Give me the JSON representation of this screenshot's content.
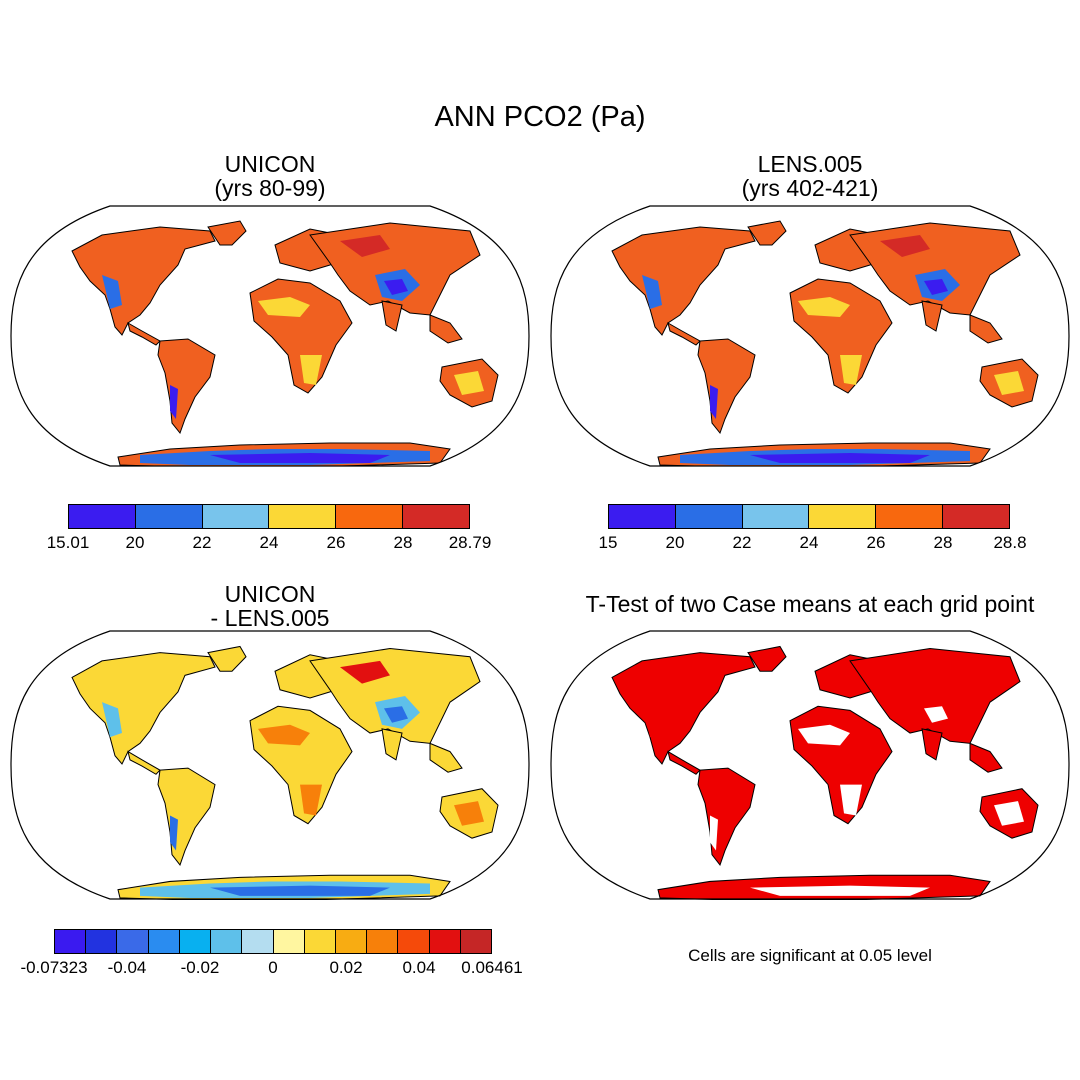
{
  "figure": {
    "title": "ANN PCO2 (Pa)"
  },
  "panels": [
    {
      "id": "unicon",
      "title_line1": "UNICON",
      "title_line2": "(yrs 80-99)",
      "colorbar": {
        "colors": [
          "#3b1cf0",
          "#2a6ee6",
          "#78c4ec",
          "#fbd836",
          "#f8680e",
          "#d42a26"
        ],
        "labels": [
          "15.01",
          "20",
          "22",
          "24",
          "26",
          "28",
          "28.79"
        ]
      },
      "palette": {
        "ocean": "#ffffff",
        "land_main": "#f06020",
        "land_dry": "#fbd836",
        "land_wet": "#2a6ee6",
        "land_vwet": "#3b1cf0",
        "land_dark": "#d42a26"
      }
    },
    {
      "id": "lens",
      "title_line1": "LENS.005",
      "title_line2": "(yrs 402-421)",
      "colorbar": {
        "colors": [
          "#3b1cf0",
          "#2a6ee6",
          "#78c4ec",
          "#fbd836",
          "#f8680e",
          "#d42a26"
        ],
        "labels": [
          "15",
          "20",
          "22",
          "24",
          "26",
          "28",
          "28.8"
        ]
      },
      "palette": {
        "ocean": "#ffffff",
        "land_main": "#f06020",
        "land_dry": "#fbd836",
        "land_wet": "#2a6ee6",
        "land_vwet": "#3b1cf0",
        "land_dark": "#d42a26"
      }
    },
    {
      "id": "diff",
      "title_line1": "UNICON",
      "title_line2": "- LENS.005",
      "colorbar": {
        "colors": [
          "#3a1af0",
          "#2233e0",
          "#3a6ae8",
          "#2a8cf0",
          "#08b0f0",
          "#5ec0ea",
          "#b4ddf0",
          "#fff6a0",
          "#fbd836",
          "#f8ac12",
          "#f7800a",
          "#f54a0a",
          "#e21010",
          "#c52626"
        ],
        "labels": [
          "-0.07323",
          "-0.04",
          "-0.02",
          "0",
          "0.02",
          "0.04",
          "0.06461"
        ]
      },
      "palette": {
        "ocean": "#ffffff",
        "land_main": "#fbd836",
        "land_dry": "#f7800a",
        "land_wet": "#5ec0ea",
        "land_vwet": "#2a6ee6",
        "land_dark": "#e21010"
      }
    },
    {
      "id": "ttest",
      "title_line1": "T-Test of two Case means at each grid point",
      "note": "Cells are significant at 0.05 level",
      "palette": {
        "ocean": "#ffffff",
        "land_main": "#ee0000",
        "land_dry": "#ffffff",
        "land_wet": "#ee0000",
        "land_vwet": "#ffffff",
        "land_dark": "#ee0000"
      }
    }
  ]
}
